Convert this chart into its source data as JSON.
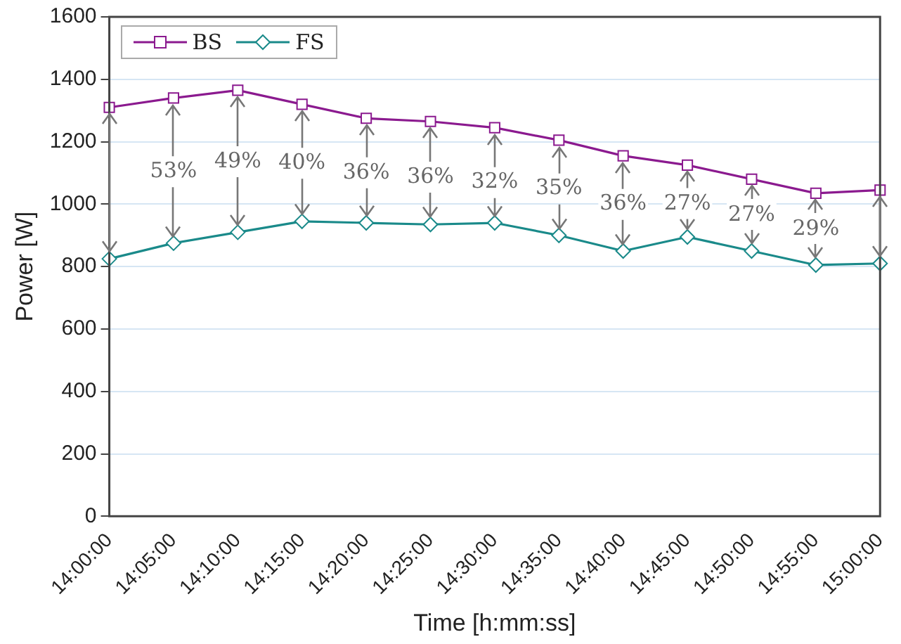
{
  "chart_data": {
    "type": "line",
    "xlabel": "Time [h:mm:ss]",
    "ylabel": "Power [W]",
    "categories": [
      "14:00:00",
      "14:05:00",
      "14:10:00",
      "14:15:00",
      "14:20:00",
      "14:25:00",
      "14:30:00",
      "14:35:00",
      "14:40:00",
      "14:45:00",
      "14:50:00",
      "14:55:00",
      "15:00:00"
    ],
    "series": [
      {
        "name": "BS",
        "color": "#8b1a8f",
        "marker": "square",
        "values": [
          1310,
          1340,
          1365,
          1320,
          1275,
          1265,
          1245,
          1205,
          1155,
          1125,
          1080,
          1035,
          1045
        ]
      },
      {
        "name": "FS",
        "color": "#1a8a8a",
        "marker": "diamond",
        "values": [
          825,
          875,
          910,
          945,
          940,
          935,
          940,
          900,
          850,
          895,
          850,
          805,
          810
        ]
      }
    ],
    "ylim": [
      0,
      1600
    ],
    "yticks": [
      0,
      200,
      400,
      600,
      800,
      1000,
      1200,
      1400,
      1600
    ],
    "grid": "y",
    "legend": "top left",
    "annotations": [
      {
        "text": "53%",
        "x": "14:05:00",
        "y": 1105
      },
      {
        "text": "49%",
        "x": "14:10:00",
        "y": 1135
      },
      {
        "text": "40%",
        "x": "14:15:00",
        "y": 1130
      },
      {
        "text": "36%",
        "x": "14:20:00",
        "y": 1100
      },
      {
        "text": "36%",
        "x": "14:25:00",
        "y": 1085
      },
      {
        "text": "32%",
        "x": "14:30:00",
        "y": 1070
      },
      {
        "text": "35%",
        "x": "14:35:00",
        "y": 1050
      },
      {
        "text": "36%",
        "x": "14:40:00",
        "y": 1000
      },
      {
        "text": "27%",
        "x": "14:45:00",
        "y": 1000
      },
      {
        "text": "27%",
        "x": "14:50:00",
        "y": 965
      },
      {
        "text": "29%",
        "x": "14:55:00",
        "y": 920
      }
    ]
  }
}
